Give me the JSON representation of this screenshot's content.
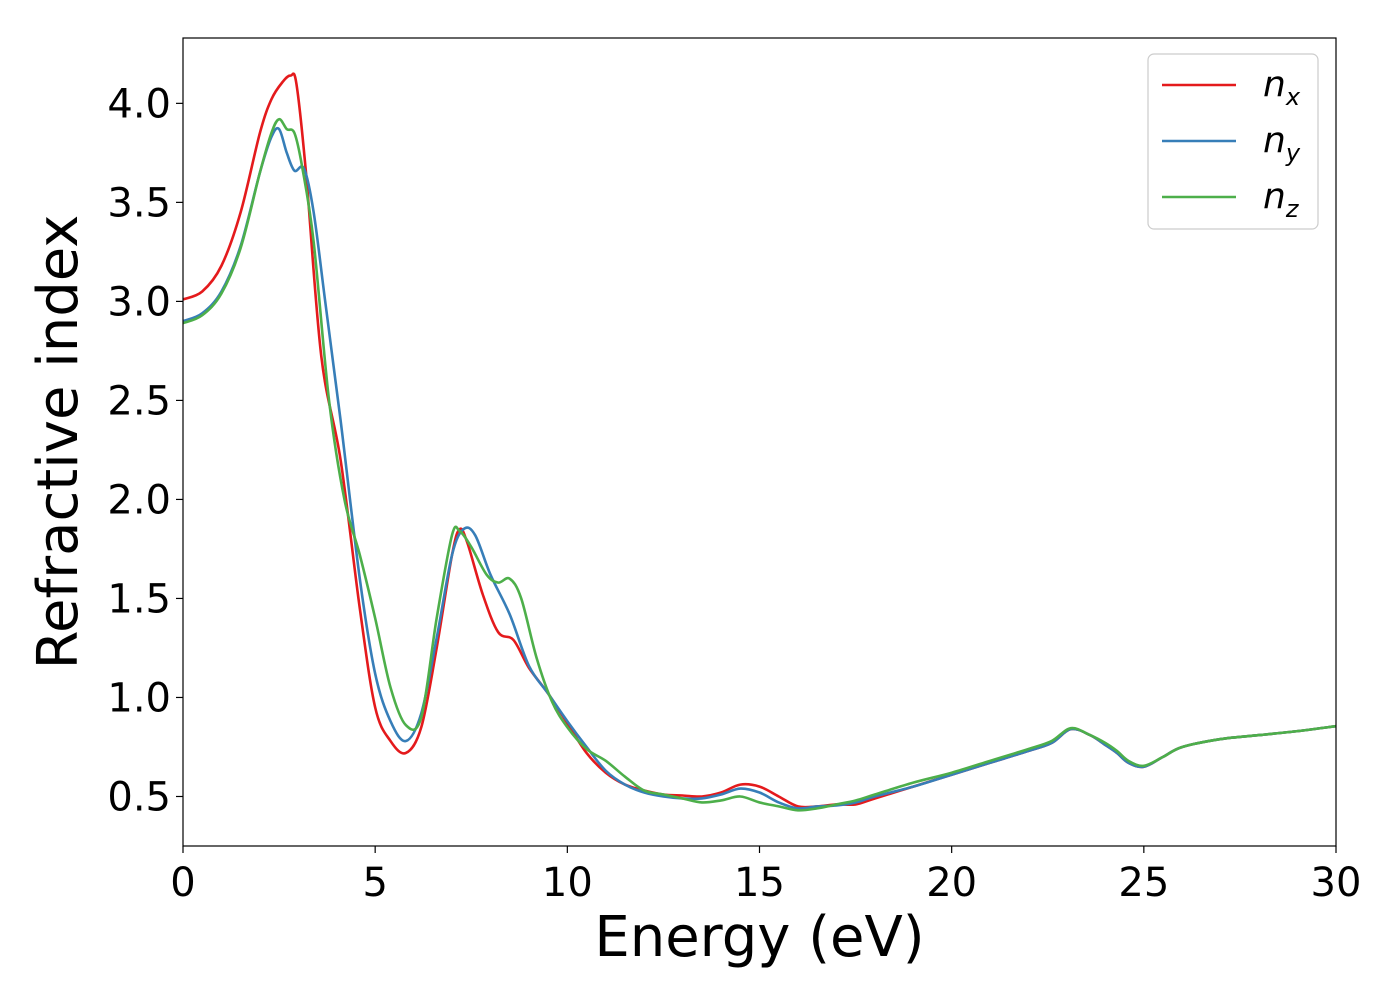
{
  "chart_data": {
    "type": "line",
    "title": "",
    "xlabel": "Energy (eV)",
    "ylabel": "Refractive index",
    "xlim": [
      0,
      30
    ],
    "ylim": [
      0.25,
      4.33
    ],
    "xticks": [
      0,
      5,
      10,
      15,
      20,
      25,
      30
    ],
    "xtick_labels": [
      "0",
      "5",
      "10",
      "15",
      "20",
      "25",
      "30"
    ],
    "yticks": [
      0.5,
      1.0,
      1.5,
      2.0,
      2.5,
      3.0,
      3.5,
      4.0
    ],
    "ytick_labels": [
      "0.5",
      "1.0",
      "1.5",
      "2.0",
      "2.5",
      "3.0",
      "3.5",
      "4.0"
    ],
    "grid": false,
    "legend_position": "top-right",
    "series": [
      {
        "name": "n_x",
        "label_main": "n",
        "label_sub": "x",
        "color": "#e41a1c",
        "x": [
          0,
          0.5,
          1.0,
          1.5,
          2.0,
          2.3,
          2.6,
          2.8,
          2.95,
          3.2,
          3.6,
          4.1,
          4.6,
          5.0,
          5.4,
          5.8,
          6.2,
          6.6,
          7.0,
          7.2,
          7.4,
          7.8,
          8.2,
          8.6,
          9.0,
          9.5,
          10.0,
          10.5,
          11.0,
          11.5,
          12.0,
          12.5,
          13.0,
          13.5,
          14.0,
          14.5,
          15.0,
          15.5,
          16.0,
          16.5,
          17.0,
          17.5,
          18.0,
          19.0,
          20.0,
          21.0,
          22.0,
          22.6,
          23.1,
          23.6,
          24.0,
          24.3,
          24.6,
          25.0,
          25.5,
          26.0,
          27.0,
          28.0,
          29.0,
          30.0
        ],
        "y": [
          3.01,
          3.05,
          3.18,
          3.45,
          3.85,
          4.02,
          4.11,
          4.14,
          4.1,
          3.65,
          2.72,
          2.2,
          1.45,
          0.95,
          0.78,
          0.72,
          0.85,
          1.25,
          1.72,
          1.85,
          1.78,
          1.52,
          1.33,
          1.29,
          1.15,
          1.02,
          0.87,
          0.72,
          0.62,
          0.56,
          0.53,
          0.51,
          0.505,
          0.5,
          0.52,
          0.56,
          0.55,
          0.5,
          0.45,
          0.45,
          0.46,
          0.46,
          0.49,
          0.55,
          0.61,
          0.67,
          0.73,
          0.77,
          0.84,
          0.81,
          0.76,
          0.72,
          0.67,
          0.65,
          0.7,
          0.75,
          0.79,
          0.81,
          0.83,
          0.855
        ]
      },
      {
        "name": "n_y",
        "label_main": "n",
        "label_sub": "y",
        "color": "#377eb8",
        "x": [
          0,
          0.5,
          1.0,
          1.5,
          2.0,
          2.3,
          2.5,
          2.7,
          2.9,
          3.15,
          3.4,
          3.7,
          4.1,
          4.6,
          5.0,
          5.4,
          5.8,
          6.2,
          6.6,
          7.0,
          7.3,
          7.6,
          8.0,
          8.5,
          9.0,
          9.5,
          10.0,
          10.5,
          11.0,
          11.5,
          12.0,
          12.5,
          13.0,
          13.5,
          14.0,
          14.5,
          15.0,
          15.5,
          16.0,
          16.5,
          17.0,
          17.5,
          18.0,
          19.0,
          20.0,
          21.0,
          22.0,
          22.6,
          23.1,
          23.6,
          24.0,
          24.3,
          24.6,
          25.0,
          25.5,
          26.0,
          27.0,
          28.0,
          29.0,
          30.0
        ],
        "y": [
          2.9,
          2.94,
          3.05,
          3.28,
          3.65,
          3.83,
          3.87,
          3.75,
          3.66,
          3.67,
          3.45,
          3.0,
          2.4,
          1.6,
          1.12,
          0.88,
          0.78,
          0.92,
          1.3,
          1.72,
          1.85,
          1.82,
          1.62,
          1.42,
          1.16,
          1.02,
          0.88,
          0.75,
          0.63,
          0.56,
          0.52,
          0.5,
          0.49,
          0.49,
          0.51,
          0.54,
          0.52,
          0.47,
          0.44,
          0.45,
          0.455,
          0.47,
          0.5,
          0.55,
          0.61,
          0.67,
          0.73,
          0.77,
          0.84,
          0.81,
          0.76,
          0.72,
          0.67,
          0.65,
          0.7,
          0.75,
          0.79,
          0.81,
          0.83,
          0.855
        ]
      },
      {
        "name": "n_z",
        "label_main": "n",
        "label_sub": "z",
        "color": "#4daf4a",
        "x": [
          0,
          0.5,
          1.0,
          1.5,
          2.0,
          2.3,
          2.5,
          2.7,
          2.9,
          3.1,
          3.4,
          3.8,
          4.2,
          4.6,
          5.0,
          5.4,
          5.8,
          6.2,
          6.6,
          7.0,
          7.2,
          7.5,
          7.9,
          8.2,
          8.5,
          8.8,
          9.2,
          9.6,
          10.0,
          10.5,
          11.0,
          11.5,
          12.0,
          12.5,
          13.0,
          13.5,
          14.0,
          14.5,
          15.0,
          15.5,
          16.0,
          16.5,
          17.0,
          17.5,
          18.0,
          19.0,
          20.0,
          21.0,
          22.0,
          22.6,
          23.1,
          23.6,
          24.0,
          24.3,
          24.6,
          25.0,
          25.5,
          26.0,
          27.0,
          28.0,
          29.0,
          30.0
        ],
        "y": [
          2.89,
          2.93,
          3.04,
          3.27,
          3.65,
          3.85,
          3.92,
          3.87,
          3.85,
          3.68,
          3.3,
          2.5,
          2.0,
          1.72,
          1.4,
          1.05,
          0.86,
          0.9,
          1.4,
          1.82,
          1.84,
          1.76,
          1.62,
          1.58,
          1.6,
          1.5,
          1.2,
          0.98,
          0.85,
          0.74,
          0.68,
          0.6,
          0.53,
          0.51,
          0.49,
          0.47,
          0.48,
          0.5,
          0.47,
          0.45,
          0.43,
          0.44,
          0.46,
          0.48,
          0.51,
          0.57,
          0.62,
          0.68,
          0.74,
          0.78,
          0.845,
          0.81,
          0.77,
          0.73,
          0.68,
          0.655,
          0.7,
          0.75,
          0.79,
          0.81,
          0.83,
          0.855
        ]
      }
    ]
  }
}
